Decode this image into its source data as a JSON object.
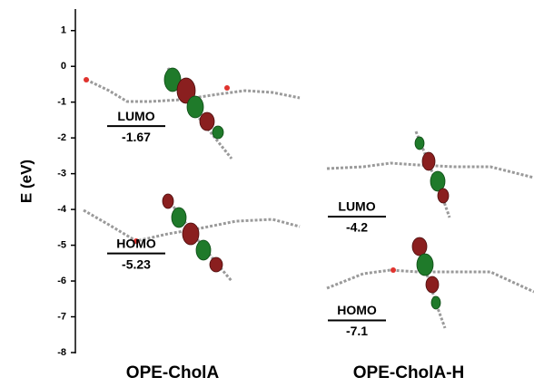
{
  "chart_data": {
    "type": "energy-level",
    "y_label": "E (eV)",
    "categories": [
      "OPE-CholA",
      "OPE-CholA-H"
    ],
    "series": [
      {
        "name": "LUMO",
        "color": "#000000",
        "values": [
          -1.67,
          -4.2
        ]
      },
      {
        "name": "HOMO",
        "color": "#000000",
        "values": [
          -5.23,
          -7.1
        ]
      }
    ],
    "ylim": [
      -8,
      1.5
    ],
    "yticks": [
      1,
      0,
      -1,
      -2,
      -3,
      -4,
      -5,
      -6,
      -7,
      -8
    ]
  }
}
